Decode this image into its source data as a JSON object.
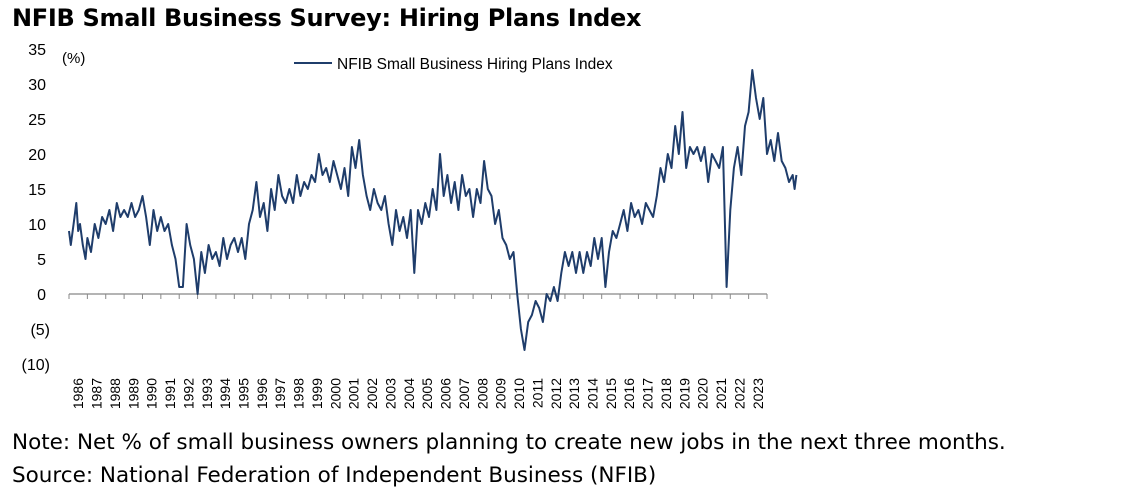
{
  "title": "NFIB Small Business Survey: Hiring Plans Index",
  "note": "Note: Net % of small business owners planning to create new jobs in the next three months.",
  "source": "Source: National Federation of Independent Business (NFIB)",
  "chart_data": {
    "type": "line",
    "unit_label": "(%)",
    "ylim": [
      -10,
      35
    ],
    "y_ticks": [
      -10,
      -5,
      0,
      5,
      10,
      15,
      20,
      25,
      30,
      35
    ],
    "y_tick_labels": [
      "(10)",
      "(5)",
      "0",
      "5",
      "10",
      "15",
      "20",
      "25",
      "30",
      "35"
    ],
    "x_tick_labels": [
      "1986",
      "1987",
      "1988",
      "1989",
      "1990",
      "1991",
      "1992",
      "1993",
      "1994",
      "1995",
      "1996",
      "1997",
      "1998",
      "1999",
      "2000",
      "2001",
      "2002",
      "2003",
      "2004",
      "2005",
      "2006",
      "2007",
      "2008",
      "2009",
      "2010",
      "2011",
      "2012",
      "2013",
      "2014",
      "2015",
      "2016",
      "2017",
      "2018",
      "2019",
      "2020",
      "2021",
      "2022",
      "2023"
    ],
    "grid": false,
    "legend_position": "top-center",
    "series": [
      {
        "name": "NFIB Small Business Hiring Plans Index",
        "color": "#1f3d6b",
        "points": [
          [
            1986.0,
            9
          ],
          [
            1986.1,
            7
          ],
          [
            1986.25,
            10
          ],
          [
            1986.4,
            13
          ],
          [
            1986.5,
            9
          ],
          [
            1986.6,
            10
          ],
          [
            1986.75,
            7
          ],
          [
            1986.9,
            5
          ],
          [
            1987.0,
            8
          ],
          [
            1987.2,
            6
          ],
          [
            1987.4,
            10
          ],
          [
            1987.6,
            8
          ],
          [
            1987.8,
            11
          ],
          [
            1988.0,
            10
          ],
          [
            1988.2,
            12
          ],
          [
            1988.4,
            9
          ],
          [
            1988.6,
            13
          ],
          [
            1988.8,
            11
          ],
          [
            1989.0,
            12
          ],
          [
            1989.2,
            11
          ],
          [
            1989.4,
            13
          ],
          [
            1989.6,
            11
          ],
          [
            1989.8,
            12
          ],
          [
            1990.0,
            14
          ],
          [
            1990.2,
            11
          ],
          [
            1990.4,
            7
          ],
          [
            1990.6,
            12
          ],
          [
            1990.8,
            9
          ],
          [
            1991.0,
            11
          ],
          [
            1991.2,
            9
          ],
          [
            1991.4,
            10
          ],
          [
            1991.6,
            7
          ],
          [
            1991.8,
            5
          ],
          [
            1992.0,
            1
          ],
          [
            1992.2,
            1
          ],
          [
            1992.4,
            10
          ],
          [
            1992.6,
            7
          ],
          [
            1992.8,
            5
          ],
          [
            1993.0,
            0
          ],
          [
            1993.2,
            6
          ],
          [
            1993.4,
            3
          ],
          [
            1993.6,
            7
          ],
          [
            1993.8,
            5
          ],
          [
            1994.0,
            6
          ],
          [
            1994.2,
            4
          ],
          [
            1994.4,
            8
          ],
          [
            1994.6,
            5
          ],
          [
            1994.8,
            7
          ],
          [
            1995.0,
            8
          ],
          [
            1995.2,
            6
          ],
          [
            1995.4,
            8
          ],
          [
            1995.6,
            5
          ],
          [
            1995.8,
            10
          ],
          [
            1996.0,
            12
          ],
          [
            1996.2,
            16
          ],
          [
            1996.4,
            11
          ],
          [
            1996.6,
            13
          ],
          [
            1996.8,
            9
          ],
          [
            1997.0,
            15
          ],
          [
            1997.2,
            12
          ],
          [
            1997.4,
            17
          ],
          [
            1997.6,
            14
          ],
          [
            1997.8,
            13
          ],
          [
            1998.0,
            15
          ],
          [
            1998.2,
            13
          ],
          [
            1998.4,
            17
          ],
          [
            1998.6,
            14
          ],
          [
            1998.8,
            16
          ],
          [
            1999.0,
            15
          ],
          [
            1999.2,
            17
          ],
          [
            1999.4,
            16
          ],
          [
            1999.6,
            20
          ],
          [
            1999.8,
            17
          ],
          [
            2000.0,
            18
          ],
          [
            2000.2,
            16
          ],
          [
            2000.4,
            19
          ],
          [
            2000.6,
            17
          ],
          [
            2000.8,
            15
          ],
          [
            2001.0,
            18
          ],
          [
            2001.2,
            14
          ],
          [
            2001.4,
            21
          ],
          [
            2001.6,
            18
          ],
          [
            2001.8,
            22
          ],
          [
            2002.0,
            17
          ],
          [
            2002.2,
            14
          ],
          [
            2002.4,
            12
          ],
          [
            2002.6,
            15
          ],
          [
            2002.8,
            13
          ],
          [
            2003.0,
            12
          ],
          [
            2003.2,
            14
          ],
          [
            2003.4,
            10
          ],
          [
            2003.6,
            7
          ],
          [
            2003.8,
            12
          ],
          [
            2004.0,
            9
          ],
          [
            2004.2,
            11
          ],
          [
            2004.4,
            8
          ],
          [
            2004.6,
            12
          ],
          [
            2004.8,
            3
          ],
          [
            2005.0,
            12
          ],
          [
            2005.2,
            10
          ],
          [
            2005.4,
            13
          ],
          [
            2005.6,
            11
          ],
          [
            2005.8,
            15
          ],
          [
            2006.0,
            12
          ],
          [
            2006.2,
            20
          ],
          [
            2006.4,
            14
          ],
          [
            2006.6,
            17
          ],
          [
            2006.8,
            13
          ],
          [
            2007.0,
            16
          ],
          [
            2007.2,
            12
          ],
          [
            2007.4,
            17
          ],
          [
            2007.6,
            14
          ],
          [
            2007.8,
            15
          ],
          [
            2008.0,
            11
          ],
          [
            2008.2,
            15
          ],
          [
            2008.4,
            13
          ],
          [
            2008.6,
            19
          ],
          [
            2008.8,
            15
          ],
          [
            2009.0,
            14
          ],
          [
            2009.2,
            10
          ],
          [
            2009.4,
            12
          ],
          [
            2009.6,
            8
          ],
          [
            2009.8,
            7
          ],
          [
            2010.0,
            5
          ],
          [
            2010.2,
            6
          ],
          [
            2010.4,
            0
          ],
          [
            2010.6,
            -5
          ],
          [
            2010.8,
            -8
          ],
          [
            2011.0,
            -4
          ],
          [
            2011.2,
            -3
          ],
          [
            2011.4,
            -1
          ],
          [
            2011.6,
            -2
          ],
          [
            2011.8,
            -4
          ],
          [
            2012.0,
            0
          ],
          [
            2012.2,
            -1
          ],
          [
            2012.4,
            1
          ],
          [
            2012.6,
            -1
          ],
          [
            2012.8,
            3
          ],
          [
            2013.0,
            6
          ],
          [
            2013.2,
            4
          ],
          [
            2013.4,
            6
          ],
          [
            2013.6,
            3
          ],
          [
            2013.8,
            6
          ],
          [
            2014.0,
            3
          ],
          [
            2014.2,
            6
          ],
          [
            2014.4,
            4
          ],
          [
            2014.6,
            8
          ],
          [
            2014.8,
            5
          ],
          [
            2015.0,
            8
          ],
          [
            2015.2,
            1
          ],
          [
            2015.4,
            6
          ],
          [
            2015.6,
            9
          ],
          [
            2015.8,
            8
          ],
          [
            2016.0,
            10
          ],
          [
            2016.2,
            12
          ],
          [
            2016.4,
            9
          ],
          [
            2016.6,
            13
          ],
          [
            2016.8,
            11
          ],
          [
            2017.0,
            12
          ],
          [
            2017.2,
            10
          ],
          [
            2017.4,
            13
          ],
          [
            2017.6,
            12
          ],
          [
            2017.8,
            11
          ],
          [
            2018.0,
            14
          ],
          [
            2018.2,
            18
          ],
          [
            2018.4,
            16
          ],
          [
            2018.6,
            20
          ],
          [
            2018.8,
            18
          ],
          [
            2019.0,
            24
          ],
          [
            2019.2,
            20
          ],
          [
            2019.4,
            26
          ],
          [
            2019.6,
            18
          ],
          [
            2019.8,
            21
          ],
          [
            2020.0,
            20
          ],
          [
            2020.2,
            21
          ],
          [
            2020.4,
            19
          ],
          [
            2020.6,
            21
          ],
          [
            2020.8,
            16
          ],
          [
            2021.0,
            20
          ],
          [
            2021.2,
            19
          ],
          [
            2021.4,
            18
          ],
          [
            2021.6,
            21
          ],
          [
            2021.8,
            1
          ],
          [
            2022.0,
            12
          ],
          [
            2022.2,
            18
          ],
          [
            2022.4,
            21
          ],
          [
            2022.6,
            17
          ],
          [
            2022.8,
            24
          ],
          [
            2023.0,
            26
          ],
          [
            2023.2,
            32
          ],
          [
            2023.4,
            28
          ],
          [
            2023.6,
            25
          ],
          [
            2023.8,
            28
          ],
          [
            2024.0,
            20
          ],
          [
            2024.2,
            22
          ],
          [
            2024.4,
            19
          ],
          [
            2024.6,
            23
          ],
          [
            2024.8,
            19
          ],
          [
            2025.0,
            18
          ],
          [
            2025.2,
            16
          ],
          [
            2025.4,
            17
          ],
          [
            2025.5,
            15
          ],
          [
            2025.6,
            17
          ]
        ]
      }
    ]
  }
}
